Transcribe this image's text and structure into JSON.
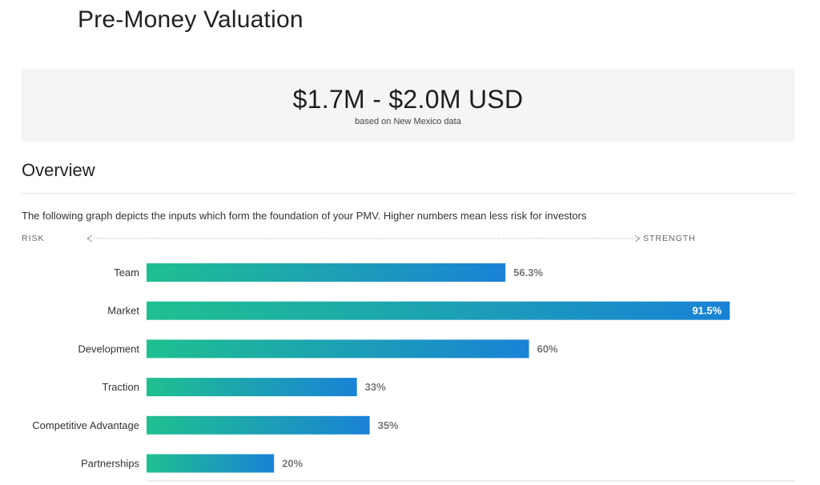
{
  "header": {
    "title": "Pre-Money Valuation"
  },
  "valuation": {
    "range": "$1.7M - $2.0M USD",
    "note": "based on New Mexico data"
  },
  "overview": {
    "title": "Overview",
    "description": "The following graph depicts the inputs which form the foundation of your PMV. Higher numbers mean less risk for investors"
  },
  "axis": {
    "left_label": "RISK",
    "right_label": "STRENGTH"
  },
  "colors": {
    "bar_start": "#1fc090",
    "bar_end": "#1a82d6",
    "label_text": "#333333",
    "value_text": "#777777"
  },
  "chart_data": {
    "type": "bar",
    "orientation": "horizontal",
    "categories": [
      "Team",
      "Market",
      "Development",
      "Traction",
      "Competitive Advantage",
      "Partnerships"
    ],
    "values": [
      56.3,
      91.5,
      60,
      33,
      35,
      20
    ],
    "value_labels": [
      "56.3%",
      "91.5%",
      "60%",
      "33%",
      "35%",
      "20%"
    ],
    "xlim": [
      0,
      100
    ],
    "unit": "%",
    "grid": false,
    "legend": "none"
  }
}
